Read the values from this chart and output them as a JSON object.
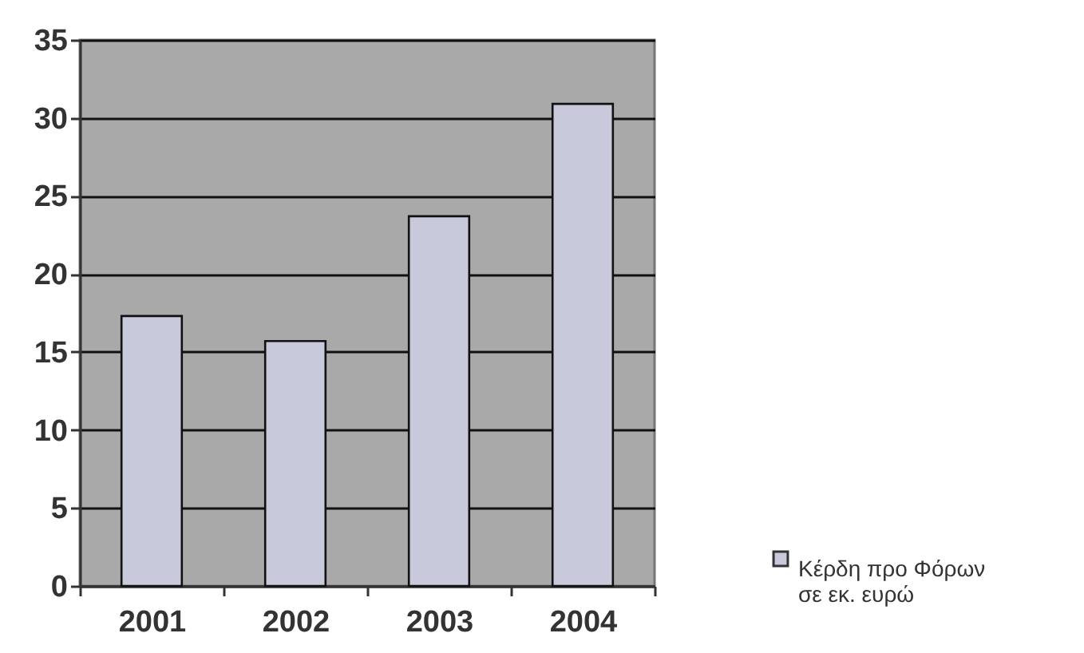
{
  "chart_data": {
    "type": "bar",
    "categories": [
      "2001",
      "2002",
      "2003",
      "2004"
    ],
    "series": [
      {
        "name": "Κέρδη προ Φόρων σε εκ. ευρώ",
        "color": "#c9c9dc",
        "values": [
          17.3,
          15.7,
          23.7,
          30.9
        ]
      }
    ],
    "ylim": [
      0,
      35
    ],
    "yticks": [
      0,
      5,
      10,
      15,
      20,
      25,
      30,
      35
    ],
    "grid": "y",
    "legend": "bottom right"
  }
}
